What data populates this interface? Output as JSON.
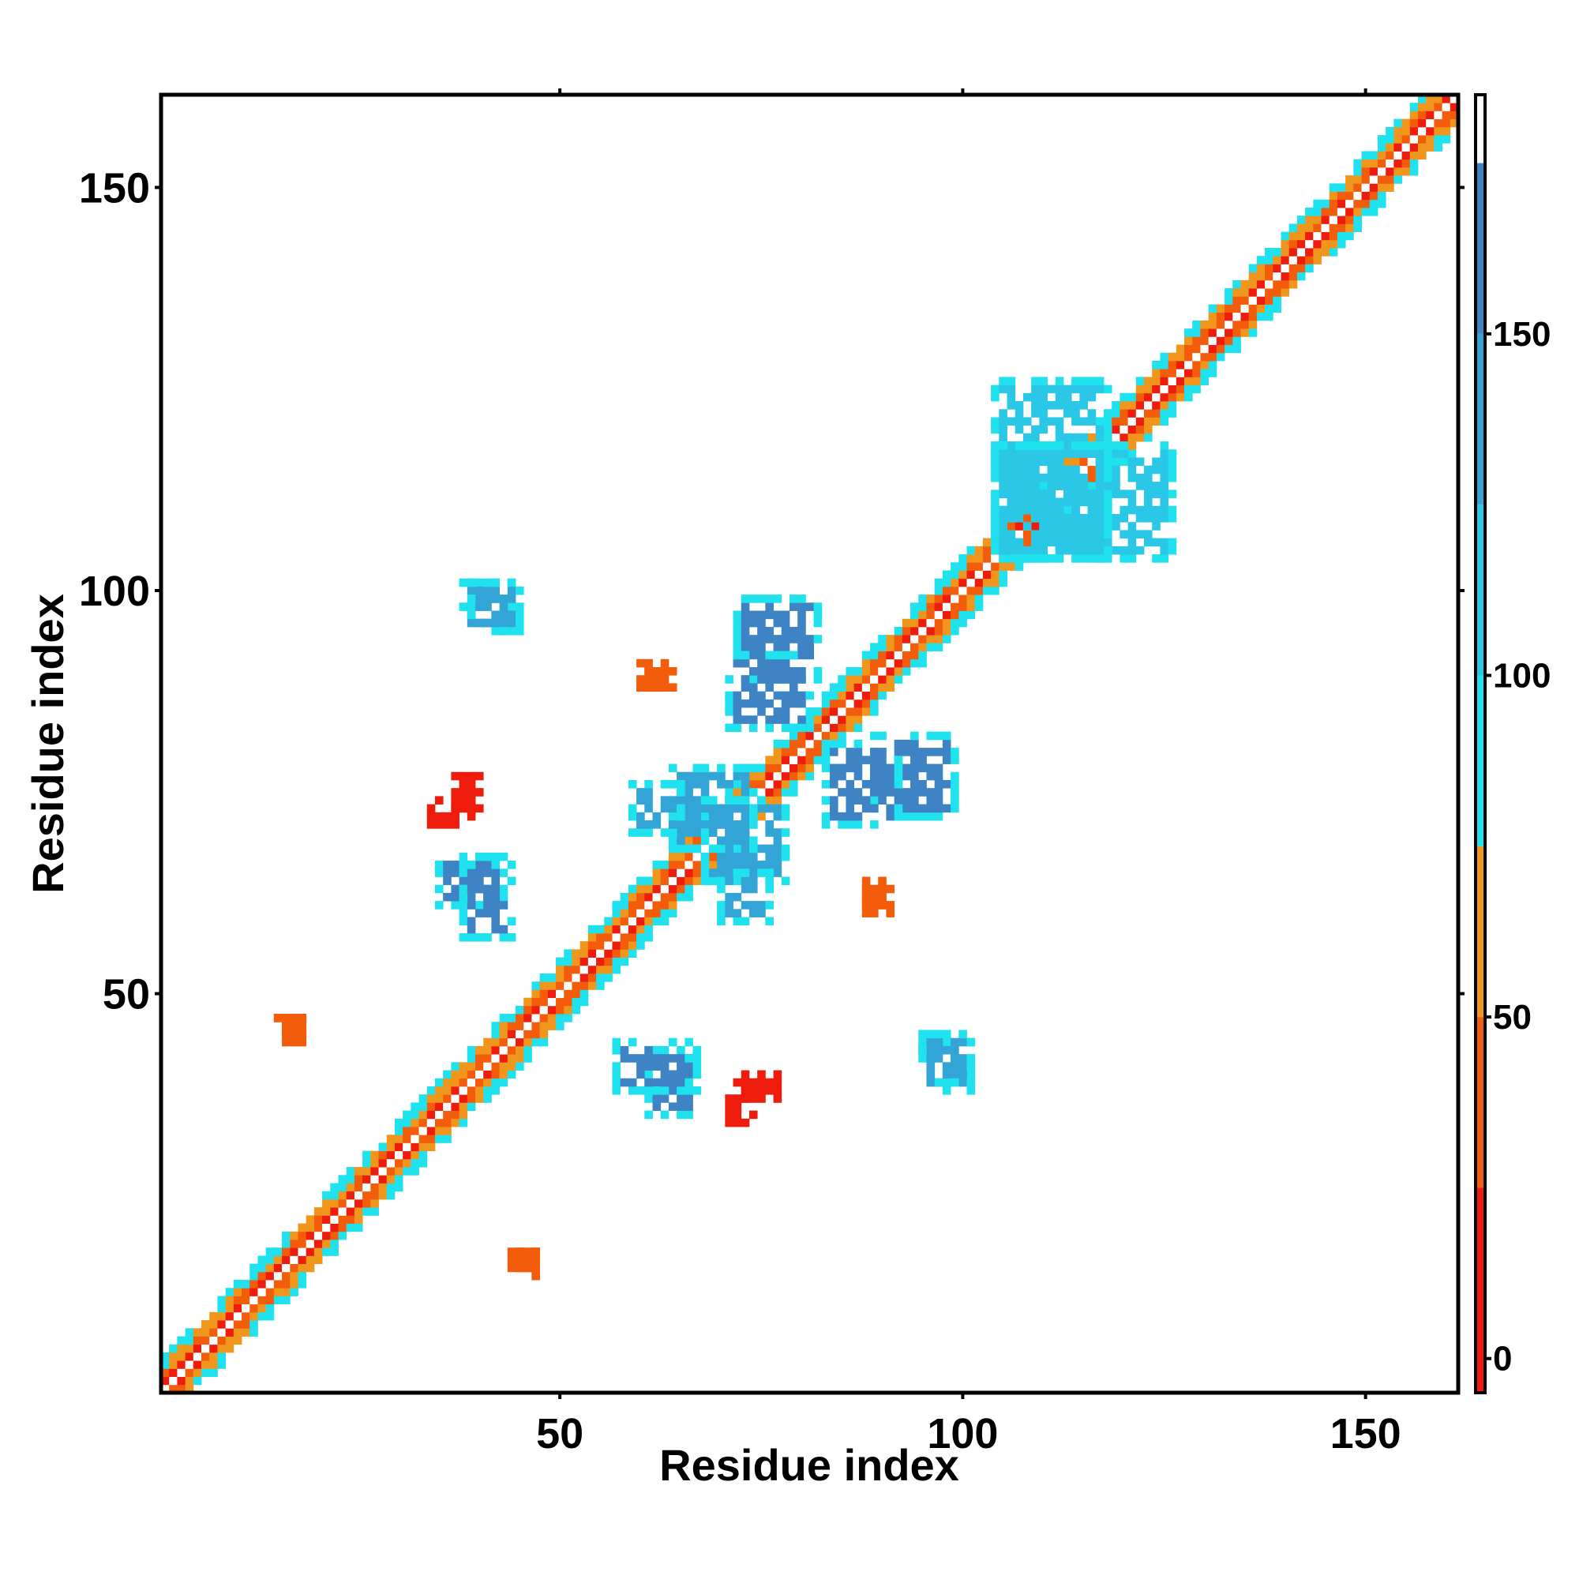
{
  "chart_data": {
    "type": "heatmap",
    "title": "",
    "xlabel": "Residue index",
    "ylabel": "Residue index",
    "xlim": [
      1,
      161
    ],
    "ylim": [
      1,
      161
    ],
    "x_ticks": [
      50,
      100,
      150
    ],
    "y_ticks": [
      50,
      100,
      150
    ],
    "colorbar": {
      "range": [
        -5,
        185
      ],
      "ticks": [
        0,
        50,
        100,
        150
      ],
      "bands": [
        {
          "from": -5,
          "to": 25,
          "color": "#ee1c0c"
        },
        {
          "from": 25,
          "to": 50,
          "color": "#f25c0a"
        },
        {
          "from": 50,
          "to": 75,
          "color": "#f0961c"
        },
        {
          "from": 75,
          "to": 100,
          "color": "#1fe2ee"
        },
        {
          "from": 100,
          "to": 125,
          "color": "#2ac8e6"
        },
        {
          "from": 125,
          "to": 150,
          "color": "#33a4d6"
        },
        {
          "from": 150,
          "to": 175,
          "color": "#3e84c4"
        },
        {
          "from": 175,
          "to": 185,
          "color": "#ffffff"
        }
      ]
    },
    "grid": false,
    "legend": "colorbar right",
    "diagonal_band": {
      "from_residue": 1,
      "to_residue": 161,
      "half_width": 4
    },
    "contact_regions": [
      {
        "i": [
          64,
          74
        ],
        "j": [
          68,
          78
        ],
        "value": 140
      },
      {
        "i": [
          72,
          82
        ],
        "j": [
          89,
          99
        ],
        "value": 150
      },
      {
        "i": [
          83,
          92
        ],
        "j": [
          71,
          81
        ],
        "value": 150
      },
      {
        "i": [
          70,
          76
        ],
        "j": [
          59,
          65
        ],
        "value": 140
      },
      {
        "i": [
          35,
          43
        ],
        "j": [
          61,
          67
        ],
        "value": 150
      },
      {
        "i": [
          38,
          44
        ],
        "j": [
          95,
          101
        ],
        "value": 135
      },
      {
        "i": [
          57,
          66
        ],
        "j": [
          38,
          44
        ],
        "value": 150
      },
      {
        "i": [
          95,
          101
        ],
        "j": [
          39,
          45
        ],
        "value": 125
      },
      {
        "i": [
          104,
          118
        ],
        "j": [
          104,
          126
        ],
        "value": 105
      },
      {
        "i": [
          15,
          18
        ],
        "j": [
          44,
          47
        ],
        "value": 40
      },
      {
        "i": [
          45,
          47
        ],
        "j": [
          15,
          18
        ],
        "value": 40
      },
      {
        "i": [
          88,
          90
        ],
        "j": [
          61,
          64
        ],
        "value": 40
      },
      {
        "i": [
          60,
          63
        ],
        "j": [
          88,
          91
        ],
        "value": 40
      },
      {
        "i": [
          34,
          39
        ],
        "j": [
          71,
          74
        ],
        "value": 20
      },
      {
        "i": [
          73,
          77
        ],
        "j": [
          37,
          40
        ],
        "value": 20
      }
    ]
  }
}
